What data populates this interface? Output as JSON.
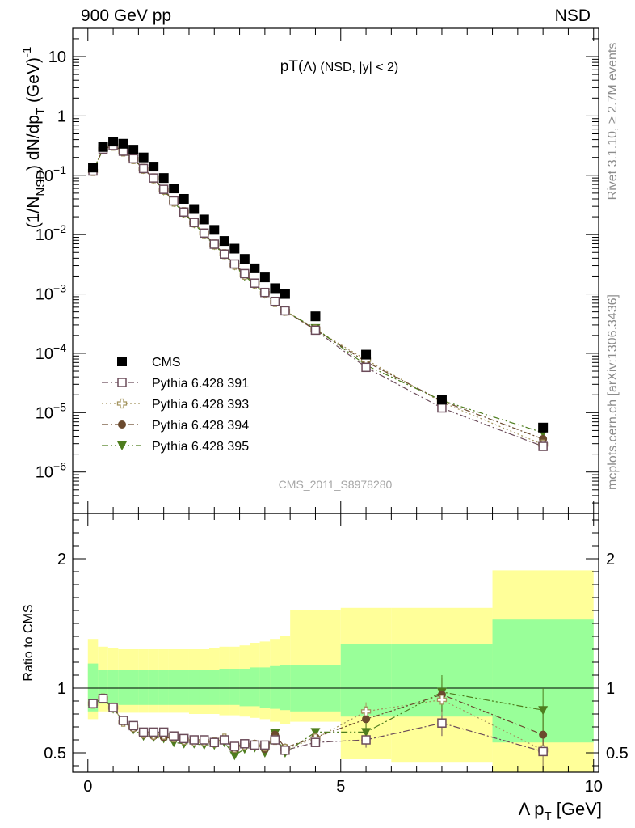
{
  "header": {
    "left_label": "900 GeV pp",
    "right_label": "NSD"
  },
  "side_labels": {
    "top": "Rivet 3.1.10, ≥ 2.7M events",
    "bottom": "mcplots.cern.ch [arXiv:1306.3436]"
  },
  "chart_data": [
    {
      "type": "scatter",
      "title": "pT(Λ) (NSD, |y| < 2)",
      "title_main": "pT(",
      "title_lambda": "Λ",
      "title_rest": ") (NSD, |y| < 2)",
      "watermark": "CMS_2011_S8978280",
      "ylabel_main": "(1/N",
      "ylabel_sub": "NSD",
      "ylabel_mid": ") dN/dp",
      "ylabel_sub2": "T",
      "ylabel_end": " (GeV)",
      "ylabel_sup": "-1",
      "yscale": "log",
      "xlim": [
        -0.3,
        10.1
      ],
      "ylim": [
        2e-07,
        30
      ],
      "y_ticks": [
        "10",
        "1",
        "10^-1",
        "10^-2",
        "10^-3",
        "10^-4",
        "10^-5",
        "10^-6"
      ],
      "legend_position": "lower-left",
      "legend": [
        "CMS",
        "Pythia 6.428 391",
        "Pythia 6.428 393",
        "Pythia 6.428 394",
        "Pythia 6.428 395"
      ],
      "x": [
        0.1,
        0.3,
        0.5,
        0.7,
        0.9,
        1.1,
        1.3,
        1.5,
        1.7,
        1.9,
        2.1,
        2.3,
        2.5,
        2.7,
        2.9,
        3.1,
        3.3,
        3.5,
        3.7,
        3.9,
        4.5,
        5.5,
        7.0,
        9.0
      ],
      "series": [
        {
          "name": "CMS",
          "color": "#000000",
          "marker": "square-filled",
          "values": [
            0.135,
            0.3,
            0.37,
            0.34,
            0.27,
            0.2,
            0.14,
            0.09,
            0.06,
            0.04,
            0.027,
            0.018,
            0.012,
            0.0078,
            0.0058,
            0.0039,
            0.0027,
            0.0019,
            0.00125,
            0.001,
            0.00042,
            9.5e-05,
            1.65e-05,
            5.6e-06
          ]
        },
        {
          "name": "Pythia 6.428 391",
          "color": "#6b4c5a",
          "marker": "square-open",
          "line": "dashdot",
          "values": [
            0.118,
            0.276,
            0.318,
            0.255,
            0.19,
            0.13,
            0.09,
            0.058,
            0.037,
            0.024,
            0.016,
            0.0106,
            0.0069,
            0.0047,
            0.0032,
            0.0022,
            0.00152,
            0.00106,
            0.00075,
            0.00052,
            0.000245,
            5.8e-05,
            1.2e-05,
            2.7e-06
          ]
        },
        {
          "name": "Pythia 6.428 393",
          "color": "#a3945e",
          "marker": "cross-open",
          "line": "dotted",
          "values": [
            0.118,
            0.276,
            0.315,
            0.252,
            0.188,
            0.129,
            0.089,
            0.057,
            0.036,
            0.024,
            0.016,
            0.0105,
            0.0068,
            0.0047,
            0.0031,
            0.0021,
            0.0015,
            0.00103,
            0.00073,
            0.00052,
            0.00025,
            7.8e-05,
            1.5e-05,
            2.9e-06
          ]
        },
        {
          "name": "Pythia 6.428 394",
          "color": "#6b4a2e",
          "marker": "circle-filled",
          "line": "dashdot",
          "values": [
            0.118,
            0.276,
            0.315,
            0.252,
            0.187,
            0.128,
            0.088,
            0.056,
            0.036,
            0.024,
            0.0157,
            0.0104,
            0.0068,
            0.0047,
            0.0031,
            0.0021,
            0.0015,
            0.00102,
            0.00072,
            0.00052,
            0.00025,
            7.2e-05,
            1.57e-05,
            3.6e-06
          ]
        },
        {
          "name": "Pythia 6.428 395",
          "color": "#4e7d1e",
          "marker": "triangle-down-filled",
          "line": "dashdotdot",
          "values": [
            0.118,
            0.276,
            0.314,
            0.25,
            0.185,
            0.126,
            0.087,
            0.055,
            0.035,
            0.023,
            0.0153,
            0.0101,
            0.0066,
            0.0046,
            0.003,
            0.002,
            0.00145,
            0.001,
            0.00071,
            0.00051,
            0.000265,
            6.3e-05,
            1.6e-05,
            4.6e-06
          ]
        }
      ]
    },
    {
      "type": "scatter",
      "ylabel": "Ratio to CMS",
      "xlabel_main": "Λ p",
      "xlabel_sub": "T",
      "xlabel_end": " [GeV]",
      "xlim": [
        -0.3,
        10.1
      ],
      "ylim": [
        0.35,
        2.35
      ],
      "y_ticks": [
        "0.5",
        "1",
        "2"
      ],
      "x_ticks": [
        "0",
        "5",
        "10"
      ],
      "reference_line": 1,
      "bins": [
        [
          0.0,
          0.2
        ],
        [
          0.2,
          0.4
        ],
        [
          0.4,
          0.6
        ],
        [
          0.6,
          0.8
        ],
        [
          0.8,
          1.0
        ],
        [
          1.0,
          1.2
        ],
        [
          1.2,
          1.4
        ],
        [
          1.4,
          1.6
        ],
        [
          1.6,
          1.8
        ],
        [
          1.8,
          2.0
        ],
        [
          2.0,
          2.2
        ],
        [
          2.2,
          2.4
        ],
        [
          2.4,
          2.6
        ],
        [
          2.6,
          2.8
        ],
        [
          2.8,
          3.0
        ],
        [
          3.0,
          3.2
        ],
        [
          3.2,
          3.4
        ],
        [
          3.4,
          3.6
        ],
        [
          3.6,
          3.8
        ],
        [
          3.8,
          4.0
        ],
        [
          4.0,
          5.0
        ],
        [
          5.0,
          6.0
        ],
        [
          6.0,
          8.0
        ],
        [
          8.0,
          10.0
        ]
      ],
      "band_colors": {
        "stat": "#99ff99",
        "total": "#ffff99"
      },
      "band_stat": [
        [
          0.82,
          1.19
        ],
        [
          0.88,
          1.14
        ],
        [
          0.88,
          1.14
        ],
        [
          0.87,
          1.14
        ],
        [
          0.87,
          1.14
        ],
        [
          0.87,
          1.14
        ],
        [
          0.87,
          1.14
        ],
        [
          0.87,
          1.14
        ],
        [
          0.87,
          1.14
        ],
        [
          0.87,
          1.14
        ],
        [
          0.87,
          1.14
        ],
        [
          0.87,
          1.14
        ],
        [
          0.87,
          1.14
        ],
        [
          0.87,
          1.15
        ],
        [
          0.87,
          1.15
        ],
        [
          0.86,
          1.15
        ],
        [
          0.86,
          1.16
        ],
        [
          0.85,
          1.16
        ],
        [
          0.84,
          1.17
        ],
        [
          0.83,
          1.18
        ],
        [
          0.82,
          1.18
        ],
        [
          0.78,
          1.34
        ],
        [
          0.78,
          1.34
        ],
        [
          0.58,
          1.53
        ]
      ],
      "band_total": [
        [
          0.76,
          1.38
        ],
        [
          0.82,
          1.32
        ],
        [
          0.82,
          1.31
        ],
        [
          0.81,
          1.3
        ],
        [
          0.81,
          1.3
        ],
        [
          0.81,
          1.3
        ],
        [
          0.81,
          1.3
        ],
        [
          0.81,
          1.3
        ],
        [
          0.81,
          1.3
        ],
        [
          0.81,
          1.3
        ],
        [
          0.8,
          1.3
        ],
        [
          0.8,
          1.3
        ],
        [
          0.8,
          1.31
        ],
        [
          0.79,
          1.32
        ],
        [
          0.79,
          1.32
        ],
        [
          0.78,
          1.33
        ],
        [
          0.77,
          1.35
        ],
        [
          0.76,
          1.36
        ],
        [
          0.74,
          1.38
        ],
        [
          0.72,
          1.4
        ],
        [
          0.74,
          1.6
        ],
        [
          0.45,
          1.62
        ],
        [
          0.43,
          1.62
        ],
        [
          0.35,
          1.91
        ]
      ],
      "series": [
        {
          "name": "Pythia 6.428 391",
          "values": [
            0.88,
            0.92,
            0.85,
            0.75,
            0.71,
            0.66,
            0.66,
            0.66,
            0.63,
            0.61,
            0.6,
            0.6,
            0.58,
            0.6,
            0.55,
            0.57,
            0.56,
            0.56,
            0.6,
            0.52,
            0.58,
            0.6,
            0.73,
            0.51
          ],
          "yerr": [
            0.01,
            0.01,
            0.01,
            0.01,
            0.01,
            0.01,
            0.01,
            0.01,
            0.01,
            0.01,
            0.01,
            0.01,
            0.01,
            0.02,
            0.02,
            0.02,
            0.03,
            0.03,
            0.03,
            0.03,
            0.03,
            0.06,
            0.1,
            0.14
          ]
        },
        {
          "name": "Pythia 6.428 393",
          "values": [
            0.88,
            0.92,
            0.85,
            0.74,
            0.7,
            0.65,
            0.64,
            0.64,
            0.62,
            0.6,
            0.59,
            0.59,
            0.58,
            0.61,
            0.54,
            0.56,
            0.56,
            0.55,
            0.6,
            0.53,
            0.61,
            0.82,
            0.91,
            0.52
          ],
          "yerr": [
            0.01,
            0.01,
            0.01,
            0.01,
            0.01,
            0.01,
            0.01,
            0.01,
            0.01,
            0.01,
            0.01,
            0.01,
            0.01,
            0.02,
            0.02,
            0.02,
            0.03,
            0.03,
            0.03,
            0.03,
            0.03,
            0.07,
            0.12,
            0.15
          ]
        },
        {
          "name": "Pythia 6.428 394",
          "values": [
            0.88,
            0.92,
            0.85,
            0.74,
            0.69,
            0.64,
            0.63,
            0.62,
            0.61,
            0.6,
            0.59,
            0.59,
            0.58,
            0.61,
            0.53,
            0.57,
            0.57,
            0.53,
            0.64,
            0.54,
            0.62,
            0.76,
            0.95,
            0.64
          ],
          "yerr": [
            0.01,
            0.01,
            0.01,
            0.01,
            0.01,
            0.01,
            0.01,
            0.01,
            0.01,
            0.01,
            0.01,
            0.01,
            0.01,
            0.02,
            0.02,
            0.02,
            0.03,
            0.03,
            0.03,
            0.03,
            0.03,
            0.07,
            0.13,
            0.16
          ]
        },
        {
          "name": "Pythia 6.428 395",
          "values": [
            0.88,
            0.92,
            0.84,
            0.74,
            0.68,
            0.63,
            0.62,
            0.61,
            0.58,
            0.57,
            0.57,
            0.56,
            0.56,
            0.58,
            0.48,
            0.53,
            0.54,
            0.5,
            0.65,
            0.5,
            0.66,
            0.66,
            0.97,
            0.83
          ],
          "yerr": [
            0.01,
            0.01,
            0.01,
            0.01,
            0.01,
            0.01,
            0.01,
            0.01,
            0.01,
            0.01,
            0.01,
            0.01,
            0.01,
            0.02,
            0.02,
            0.02,
            0.03,
            0.03,
            0.03,
            0.03,
            0.03,
            0.07,
            0.13,
            0.17
          ]
        }
      ]
    }
  ]
}
